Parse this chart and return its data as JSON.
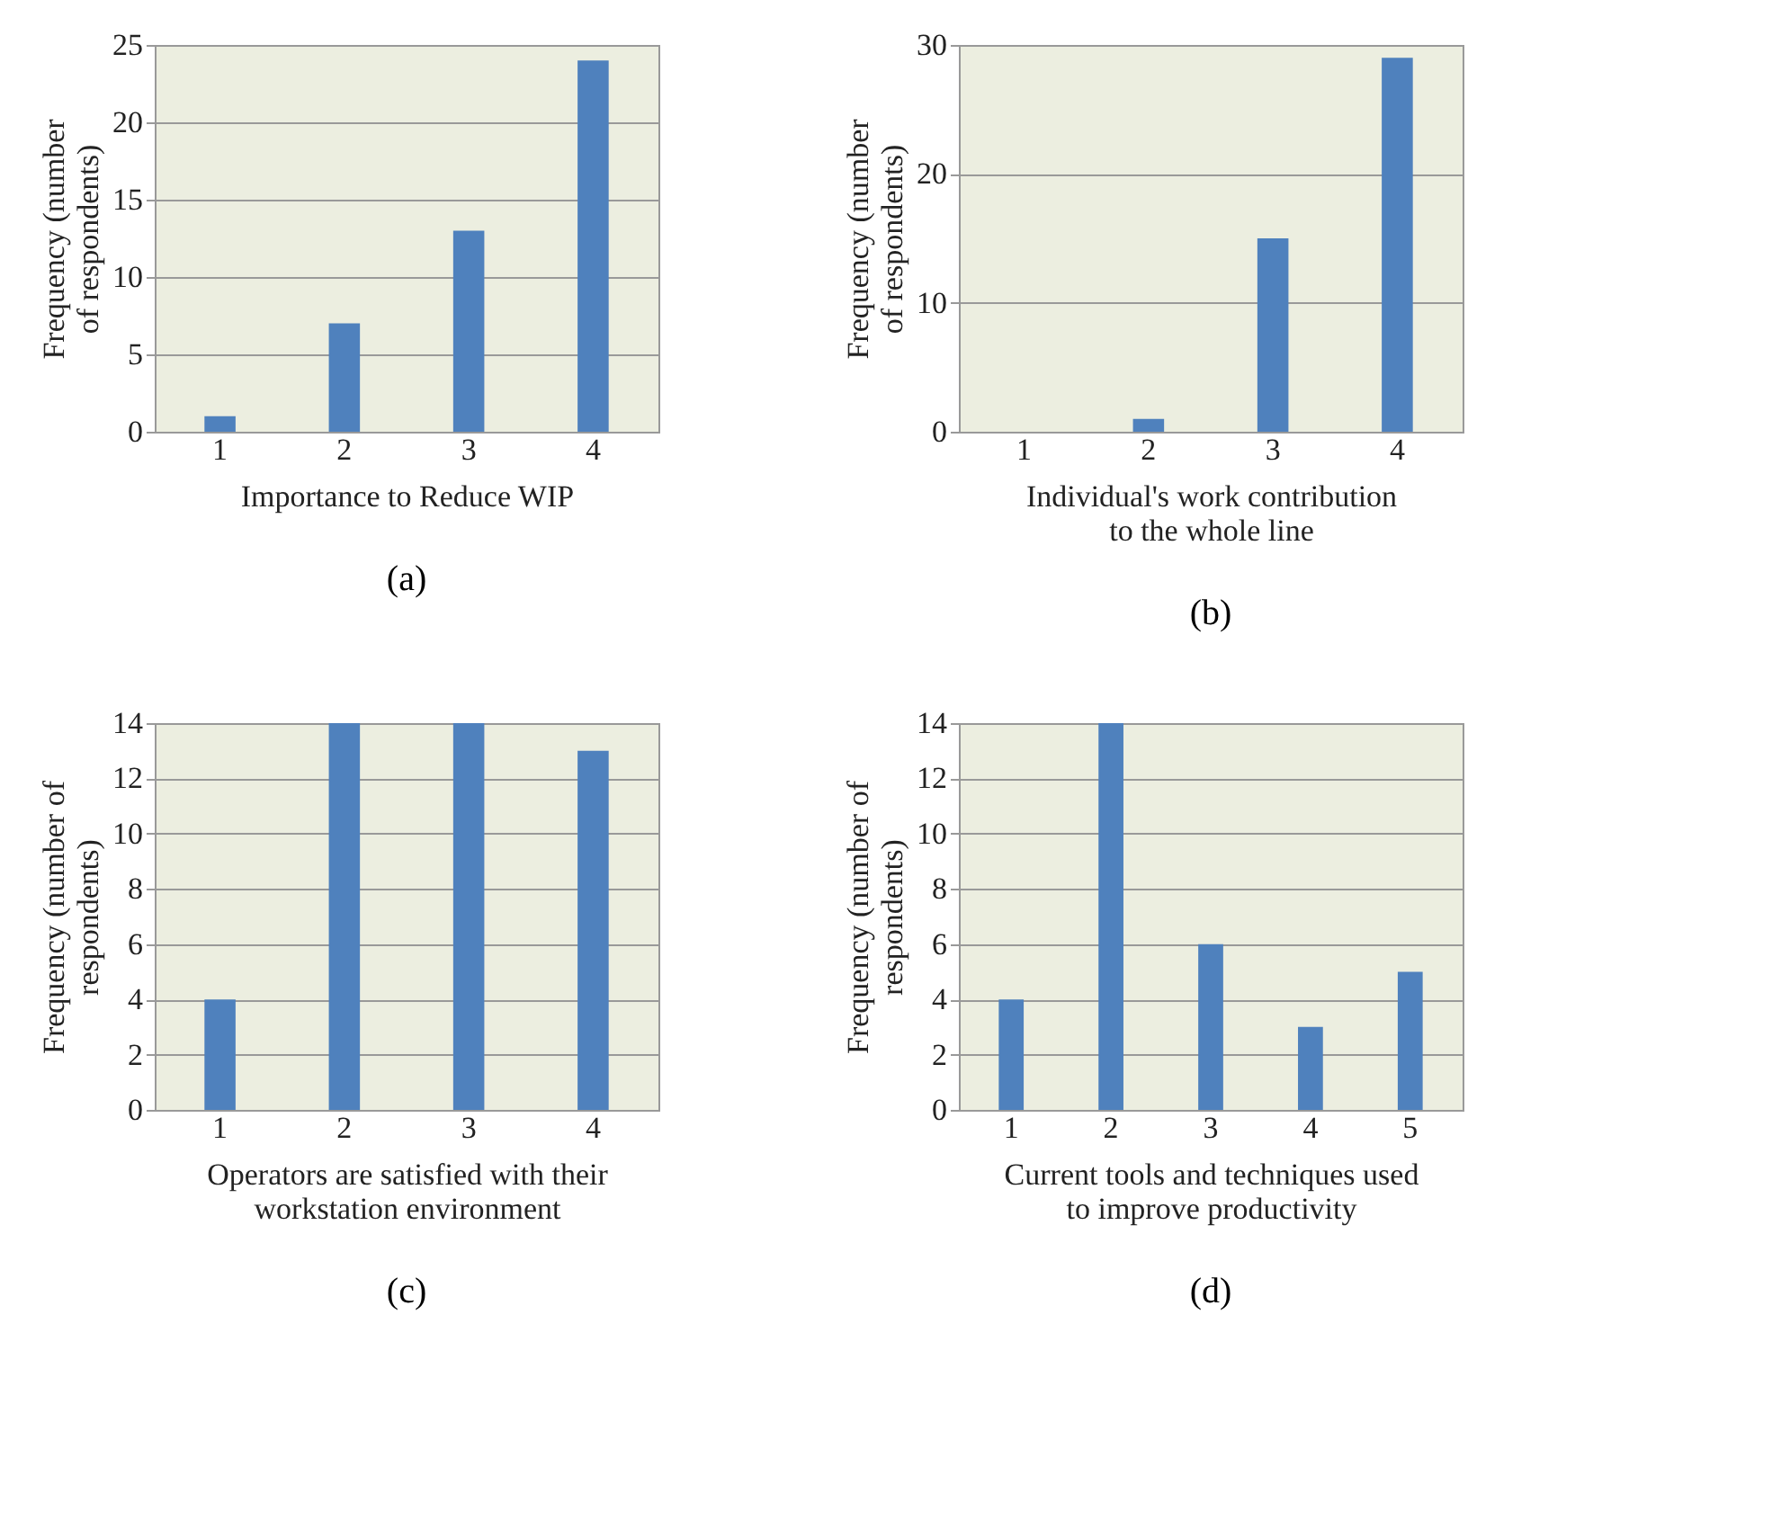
{
  "chart_data": [
    {
      "type": "bar",
      "categories": [
        "1",
        "2",
        "3",
        "4"
      ],
      "values": [
        1,
        7,
        13,
        24
      ],
      "color": "#4f81bd",
      "ylim": [
        0,
        25
      ],
      "yticks": [
        0,
        5,
        10,
        15,
        20,
        25
      ],
      "grid": "y",
      "xlabel": "Importance to Reduce WIP",
      "ylabel": "Frequency (number\nof respondents)",
      "annotations": [
        "(a)"
      ]
    },
    {
      "type": "bar",
      "categories": [
        "1",
        "2",
        "3",
        "4"
      ],
      "values": [
        0,
        1,
        15,
        29
      ],
      "color": "#4f81bd",
      "ylim": [
        0,
        30
      ],
      "yticks": [
        0,
        10,
        20,
        30
      ],
      "grid": "y",
      "xlabel": "Individual's  work contribution\nto the whole line",
      "ylabel": "Frequency (number\nof respondents)",
      "annotations": [
        "(b)"
      ]
    },
    {
      "type": "bar",
      "categories": [
        "1",
        "2",
        "3",
        "4"
      ],
      "values": [
        4,
        14,
        14,
        13
      ],
      "color": "#4f81bd",
      "ylim": [
        0,
        14
      ],
      "yticks": [
        0,
        2,
        4,
        6,
        8,
        10,
        12,
        14
      ],
      "grid": "y",
      "xlabel": "Operators are satisfied with their\nworkstation  environment",
      "ylabel": "Frequency (number of\nrespondents)",
      "annotations": [
        "(c)"
      ]
    },
    {
      "type": "bar",
      "categories": [
        "1",
        "2",
        "3",
        "4",
        "5"
      ],
      "values": [
        4,
        14,
        6,
        3,
        5
      ],
      "color": "#4f81bd",
      "ylim": [
        0,
        14
      ],
      "yticks": [
        0,
        2,
        4,
        6,
        8,
        10,
        12,
        14
      ],
      "grid": "y",
      "xlabel": "Current tools and techniques used\nto improve productivity",
      "ylabel": "Frequency (number of\nrespondents)",
      "annotations": [
        "(d)"
      ]
    }
  ]
}
